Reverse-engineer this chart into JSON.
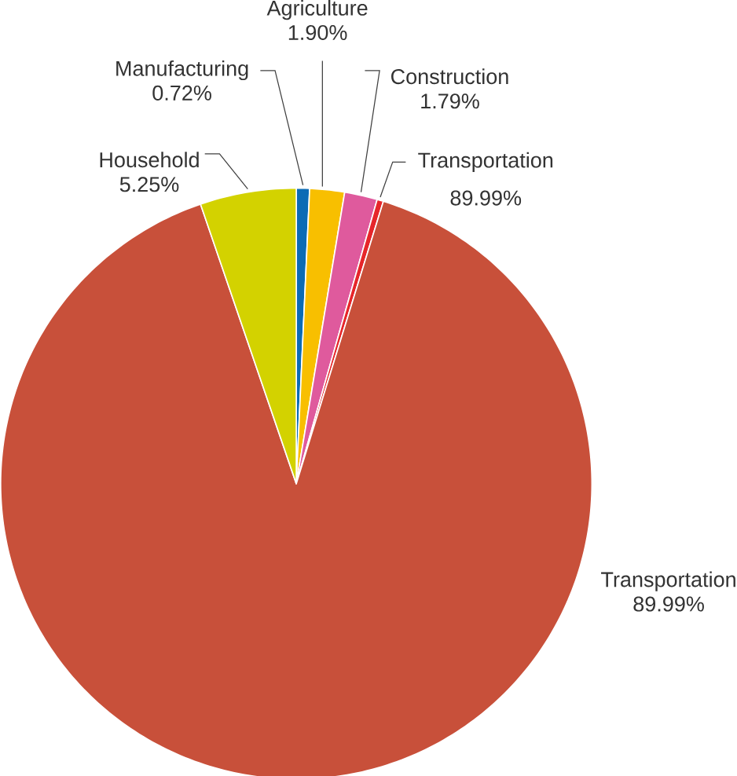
{
  "chart_data": {
    "type": "pie",
    "categories": [
      "Manufacturing",
      "Agriculture",
      "Construction",
      null,
      "Transportation",
      "Household"
    ],
    "values": [
      0.72,
      1.9,
      1.79,
      0.35,
      89.99,
      5.25
    ],
    "colors": [
      "#0b6bb5",
      "#f8bf00",
      "#df5a9d",
      "#e6262a",
      "#c8503a",
      "#d3d200"
    ],
    "value_labels": [
      "0.72%",
      "1.90%",
      "1.79%",
      null,
      "89.99%",
      "5.25%"
    ],
    "annotations": [
      "Transportation",
      "89.99%"
    ]
  }
}
